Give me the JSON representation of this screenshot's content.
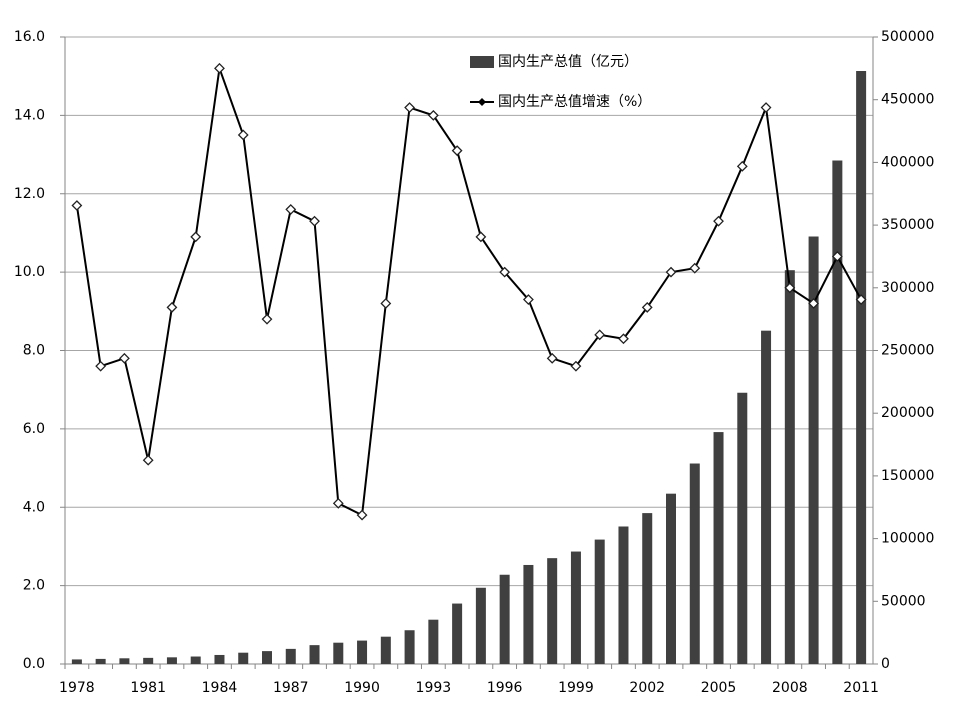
{
  "chart_data": {
    "type": "bar_line",
    "categories": [
      "1978",
      null,
      null,
      "1981",
      null,
      null,
      "1984",
      null,
      null,
      "1987",
      null,
      null,
      "1990",
      null,
      null,
      "1993",
      null,
      null,
      "1996",
      null,
      null,
      "1999",
      null,
      null,
      "2002",
      null,
      null,
      "2005",
      null,
      null,
      "2008",
      null,
      null,
      "2011"
    ],
    "series": [
      {
        "name": "国内生产总值（亿元）",
        "color": "#404040",
        "kind": "bar",
        "axis": "y2",
        "values": [
          3645,
          4063,
          4546,
          4892,
          5323,
          5963,
          7208,
          9016,
          10275,
          12059,
          15043,
          16992,
          18668,
          21781,
          26923,
          35334,
          48198,
          60794,
          71177,
          78973,
          84402,
          89677,
          99215,
          109655,
          120333,
          135823,
          159878,
          184937,
          216314,
          265810,
          314045,
          340903,
          401513,
          472882
        ]
      },
      {
        "name": "国内生产总值增速（%）",
        "color": "#000000",
        "kind": "line",
        "axis": "y",
        "values": [
          11.7,
          7.6,
          7.8,
          5.2,
          9.1,
          10.9,
          15.2,
          13.5,
          8.8,
          11.6,
          11.3,
          4.1,
          3.8,
          9.2,
          14.2,
          14.0,
          13.1,
          10.9,
          10.0,
          9.3,
          7.8,
          7.6,
          8.4,
          8.3,
          9.1,
          10.0,
          10.1,
          11.3,
          12.7,
          14.2,
          9.6,
          9.2,
          10.4,
          9.3
        ]
      }
    ],
    "ylim": [
      0,
      16
    ],
    "yticks": [
      {
        "value": 0,
        "label": "0.0"
      },
      {
        "value": 2,
        "label": "2.0"
      },
      {
        "value": 4,
        "label": "4.0"
      },
      {
        "value": 6,
        "label": "6.0"
      },
      {
        "value": 8,
        "label": "8.0"
      },
      {
        "value": 10,
        "label": "10.0"
      },
      {
        "value": 12,
        "label": "12.0"
      },
      {
        "value": 14,
        "label": "14.0"
      },
      {
        "value": 16,
        "label": "16.0"
      }
    ],
    "y2lim": [
      0,
      500000
    ],
    "y2ticks": [
      0,
      50000,
      100000,
      150000,
      200000,
      250000,
      300000,
      350000,
      400000,
      450000,
      500000
    ],
    "grid": true,
    "legend": "top"
  }
}
